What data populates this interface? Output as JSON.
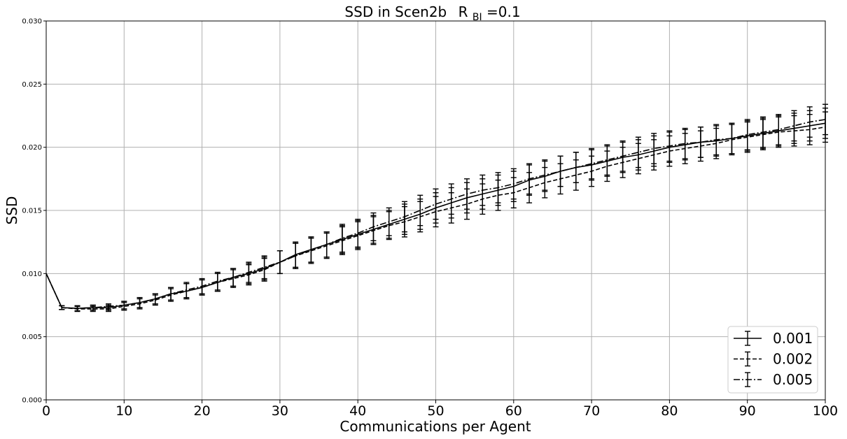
{
  "chart_data": {
    "type": "line",
    "title": "SSD in Scen2b",
    "title_math": {
      "base": "R",
      "sub": "BI",
      "suffix": "=0.1"
    },
    "xlabel": "Communications per Agent",
    "ylabel": "SSD",
    "xlim": [
      0,
      100
    ],
    "ylim": [
      0,
      0.03
    ],
    "x_ticks": [
      "0",
      "10",
      "20",
      "30",
      "40",
      "50",
      "60",
      "70",
      "80",
      "90",
      "100"
    ],
    "y_ticks": [
      "0.000",
      "0.005",
      "0.010",
      "0.015",
      "0.020",
      "0.025",
      "0.030"
    ],
    "grid": true,
    "legend_position": "lower-right",
    "x": [
      0,
      2,
      4,
      6,
      8,
      10,
      12,
      14,
      16,
      18,
      20,
      22,
      24,
      26,
      28,
      30,
      32,
      34,
      36,
      38,
      40,
      42,
      44,
      46,
      48,
      50,
      52,
      54,
      56,
      58,
      60,
      62,
      64,
      66,
      68,
      70,
      72,
      74,
      76,
      78,
      80,
      82,
      84,
      86,
      88,
      90,
      92,
      94,
      96,
      98,
      100
    ],
    "series": [
      {
        "name": "0.001",
        "linestyle": "solid",
        "values": [
          0.01,
          0.0073,
          0.00725,
          0.0073,
          0.0073,
          0.0075,
          0.0077,
          0.008,
          0.0084,
          0.0086,
          0.0089,
          0.0093,
          0.0097,
          0.01,
          0.0104,
          0.0109,
          0.0115,
          0.0119,
          0.0123,
          0.0127,
          0.0131,
          0.0135,
          0.0139,
          0.0143,
          0.0147,
          0.0152,
          0.0156,
          0.016,
          0.0163,
          0.0166,
          0.0169,
          0.0174,
          0.0177,
          0.0181,
          0.0184,
          0.0186,
          0.0189,
          0.0192,
          0.0194,
          0.0197,
          0.02,
          0.0202,
          0.0204,
          0.0205,
          0.0207,
          0.0209,
          0.0211,
          0.0213,
          0.0215,
          0.0217,
          0.0219
        ],
        "err": [
          0.0,
          0.00015,
          0.0002,
          0.0002,
          0.0002,
          0.0003,
          0.0004,
          0.0004,
          0.0005,
          0.0006,
          0.0006,
          0.0007,
          0.0007,
          0.0008,
          0.0009,
          0.0009,
          0.001,
          0.001,
          0.001,
          0.0011,
          0.0011,
          0.0011,
          0.0011,
          0.0012,
          0.0012,
          0.0012,
          0.0012,
          0.0012,
          0.0012,
          0.0012,
          0.0012,
          0.0012,
          0.0012,
          0.0012,
          0.0012,
          0.0012,
          0.0012,
          0.0012,
          0.0012,
          0.0012,
          0.0012,
          0.0012,
          0.0012,
          0.0012,
          0.0012,
          0.0012,
          0.0012,
          0.0012,
          0.0012,
          0.0012,
          0.0012
        ]
      },
      {
        "name": "0.002",
        "linestyle": "dashed",
        "values": [
          0.01,
          0.0073,
          0.0072,
          0.0072,
          0.0072,
          0.0074,
          0.0076,
          0.0079,
          0.0083,
          0.0086,
          0.0089,
          0.0093,
          0.0096,
          0.0099,
          0.0103,
          0.0109,
          0.0114,
          0.0118,
          0.0122,
          0.0126,
          0.013,
          0.0134,
          0.0138,
          0.0141,
          0.0145,
          0.0149,
          0.0152,
          0.0155,
          0.0159,
          0.0162,
          0.0164,
          0.0168,
          0.0172,
          0.0175,
          0.0178,
          0.0181,
          0.0185,
          0.0188,
          0.0191,
          0.0194,
          0.0197,
          0.0199,
          0.0201,
          0.0203,
          0.0206,
          0.0208,
          0.021,
          0.0212,
          0.0213,
          0.0214,
          0.0216
        ],
        "err": [
          0.0,
          0.00015,
          0.0002,
          0.0002,
          0.0002,
          0.0003,
          0.0004,
          0.0004,
          0.0005,
          0.0006,
          0.0006,
          0.0007,
          0.0007,
          0.0008,
          0.0009,
          0.0009,
          0.001,
          0.001,
          0.001,
          0.0011,
          0.0011,
          0.0011,
          0.0011,
          0.0012,
          0.0012,
          0.0012,
          0.0012,
          0.0012,
          0.0012,
          0.0012,
          0.0012,
          0.0012,
          0.0012,
          0.0012,
          0.0012,
          0.0012,
          0.0012,
          0.0012,
          0.0012,
          0.0012,
          0.0012,
          0.0012,
          0.0012,
          0.0012,
          0.0012,
          0.0012,
          0.0012,
          0.0012,
          0.0012,
          0.0012,
          0.0012
        ]
      },
      {
        "name": "0.005",
        "linestyle": "dashdot",
        "values": [
          0.01,
          0.0073,
          0.00725,
          0.0073,
          0.0074,
          0.0075,
          0.0077,
          0.008,
          0.0084,
          0.0087,
          0.009,
          0.0094,
          0.0097,
          0.0101,
          0.0105,
          0.0109,
          0.0114,
          0.0119,
          0.0123,
          0.0128,
          0.0132,
          0.0137,
          0.0141,
          0.0145,
          0.015,
          0.0155,
          0.0159,
          0.0163,
          0.0166,
          0.0168,
          0.0171,
          0.0175,
          0.0178,
          0.0181,
          0.0184,
          0.0187,
          0.019,
          0.0193,
          0.0196,
          0.0199,
          0.0201,
          0.0203,
          0.0204,
          0.0206,
          0.0207,
          0.021,
          0.0212,
          0.0214,
          0.0217,
          0.022,
          0.0222
        ],
        "err": [
          0.0,
          0.00015,
          0.0002,
          0.0002,
          0.0002,
          0.0003,
          0.0004,
          0.0004,
          0.0005,
          0.0006,
          0.0006,
          0.0007,
          0.0007,
          0.0008,
          0.0009,
          0.0009,
          0.001,
          0.001,
          0.001,
          0.0011,
          0.0011,
          0.0011,
          0.0011,
          0.0012,
          0.0012,
          0.0012,
          0.0012,
          0.0012,
          0.0012,
          0.0012,
          0.0012,
          0.0012,
          0.0012,
          0.0012,
          0.0012,
          0.0012,
          0.0012,
          0.0012,
          0.0012,
          0.0012,
          0.0012,
          0.0012,
          0.0012,
          0.0012,
          0.0012,
          0.0012,
          0.0012,
          0.0012,
          0.0012,
          0.0012,
          0.0012
        ]
      }
    ]
  }
}
